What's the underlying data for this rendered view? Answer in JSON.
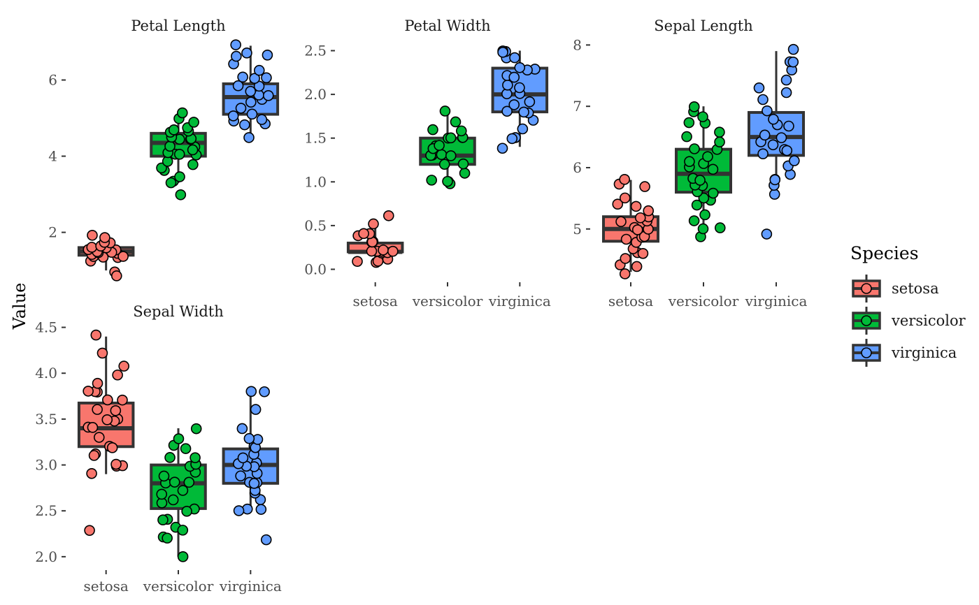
{
  "chart_data": {
    "type": "box",
    "ylabel": "Value",
    "legend": {
      "title": "Species",
      "placement": "right"
    },
    "species": [
      {
        "name": "setosa",
        "color": "#F8766D"
      },
      {
        "name": "versicolor",
        "color": "#00BA38"
      },
      {
        "name": "virginica",
        "color": "#619CFF"
      }
    ],
    "panels": [
      {
        "title": "Petal Length",
        "ylim": [
          0.8,
          7.0
        ],
        "yticks": [
          {
            "value": 2,
            "label": "2"
          },
          {
            "value": 4,
            "label": "4"
          },
          {
            "value": 6,
            "label": "6"
          }
        ],
        "show_x_labels": false,
        "boxes": [
          {
            "species": "setosa",
            "q1": 1.4,
            "median": 1.5,
            "q3": 1.6,
            "whisker_low": 1.0,
            "whisker_high": 1.9
          },
          {
            "species": "versicolor",
            "q1": 4.0,
            "median": 4.35,
            "q3": 4.6,
            "whisker_low": 3.3,
            "whisker_high": 5.1
          },
          {
            "species": "virginica",
            "q1": 5.1,
            "median": 5.55,
            "q3": 5.9,
            "whisker_low": 4.5,
            "whisker_high": 6.9
          }
        ],
        "points": [
          [
            1.0,
            1.2,
            1.3,
            1.3,
            1.4,
            1.4,
            1.4,
            1.4,
            1.5,
            1.5,
            1.5,
            1.5,
            1.5,
            1.6,
            1.6,
            1.6,
            1.7,
            1.7,
            1.9,
            1.9,
            0.9
          ],
          [
            3.0,
            3.3,
            3.3,
            3.5,
            3.6,
            3.7,
            3.8,
            3.9,
            4.0,
            4.0,
            4.1,
            4.1,
            4.2,
            4.2,
            4.3,
            4.4,
            4.4,
            4.5,
            4.5,
            4.6,
            4.7,
            4.7,
            4.8,
            4.9,
            5.0,
            5.1
          ],
          [
            4.5,
            4.8,
            4.8,
            4.9,
            5.0,
            5.1,
            5.1,
            5.3,
            5.4,
            5.5,
            5.6,
            5.6,
            5.7,
            5.8,
            5.9,
            6.0,
            6.1,
            6.1,
            6.3,
            6.4,
            6.6,
            6.7,
            6.7,
            6.9
          ]
        ]
      },
      {
        "title": "Petal Width",
        "ylim": [
          -0.1,
          2.6
        ],
        "yticks": [
          {
            "value": 0.0,
            "label": "0.0"
          },
          {
            "value": 0.5,
            "label": "0.5"
          },
          {
            "value": 1.0,
            "label": "1.0"
          },
          {
            "value": 1.5,
            "label": "1.5"
          },
          {
            "value": 2.0,
            "label": "2.0"
          },
          {
            "value": 2.5,
            "label": "2.5"
          }
        ],
        "show_x_labels": true,
        "boxes": [
          {
            "species": "setosa",
            "q1": 0.2,
            "median": 0.2,
            "q3": 0.3,
            "whisker_low": 0.1,
            "whisker_high": 0.5
          },
          {
            "species": "versicolor",
            "q1": 1.2,
            "median": 1.3,
            "q3": 1.5,
            "whisker_low": 1.0,
            "whisker_high": 1.8
          },
          {
            "species": "virginica",
            "q1": 1.8,
            "median": 2.0,
            "q3": 2.3,
            "whisker_low": 1.4,
            "whisker_high": 2.5
          }
        ],
        "points": [
          [
            0.1,
            0.1,
            0.1,
            0.1,
            0.2,
            0.2,
            0.2,
            0.2,
            0.2,
            0.2,
            0.2,
            0.3,
            0.3,
            0.3,
            0.4,
            0.4,
            0.4,
            0.5,
            0.6
          ],
          [
            1.0,
            1.0,
            1.0,
            1.0,
            1.1,
            1.2,
            1.2,
            1.3,
            1.3,
            1.3,
            1.3,
            1.4,
            1.4,
            1.4,
            1.5,
            1.5,
            1.5,
            1.5,
            1.6,
            1.6,
            1.7,
            1.8
          ],
          [
            1.4,
            1.5,
            1.5,
            1.6,
            1.7,
            1.8,
            1.8,
            1.8,
            1.9,
            1.9,
            2.0,
            2.0,
            2.1,
            2.1,
            2.2,
            2.2,
            2.3,
            2.3,
            2.3,
            2.4,
            2.4,
            2.5,
            2.5,
            2.5
          ]
        ]
      },
      {
        "title": "Sepal Length",
        "ylim": [
          4.2,
          8.05
        ],
        "yticks": [
          {
            "value": 5,
            "label": "5"
          },
          {
            "value": 6,
            "label": "6"
          },
          {
            "value": 7,
            "label": "7"
          },
          {
            "value": 8,
            "label": "8"
          }
        ],
        "show_x_labels": true,
        "boxes": [
          {
            "species": "setosa",
            "q1": 4.8,
            "median": 5.0,
            "q3": 5.2,
            "whisker_low": 4.3,
            "whisker_high": 5.8
          },
          {
            "species": "versicolor",
            "q1": 5.6,
            "median": 5.9,
            "q3": 6.3,
            "whisker_low": 4.9,
            "whisker_high": 7.0
          },
          {
            "species": "virginica",
            "q1": 6.2,
            "median": 6.5,
            "q3": 6.9,
            "whisker_low": 5.6,
            "whisker_high": 7.9
          }
        ],
        "points": [
          [
            4.3,
            4.4,
            4.4,
            4.5,
            4.6,
            4.6,
            4.7,
            4.8,
            4.8,
            4.9,
            4.9,
            5.0,
            5.0,
            5.0,
            5.1,
            5.1,
            5.2,
            5.2,
            5.3,
            5.4,
            5.4,
            5.5,
            5.7,
            5.7,
            5.8
          ],
          [
            4.9,
            5.0,
            5.0,
            5.1,
            5.2,
            5.4,
            5.5,
            5.5,
            5.6,
            5.6,
            5.7,
            5.7,
            5.8,
            5.8,
            6.0,
            6.0,
            6.1,
            6.1,
            6.2,
            6.3,
            6.3,
            6.4,
            6.5,
            6.6,
            6.7,
            6.7,
            6.8,
            6.9,
            7.0
          ],
          [
            4.9,
            5.6,
            5.7,
            5.8,
            5.8,
            5.9,
            6.0,
            6.1,
            6.2,
            6.3,
            6.3,
            6.4,
            6.4,
            6.5,
            6.5,
            6.7,
            6.7,
            6.8,
            6.9,
            7.1,
            7.2,
            7.3,
            7.4,
            7.6,
            7.7,
            7.7,
            7.9
          ]
        ]
      },
      {
        "title": "Sepal Width",
        "ylim": [
          1.9,
          4.55
        ],
        "yticks": [
          {
            "value": 2.0,
            "label": "2.0"
          },
          {
            "value": 2.5,
            "label": "2.5"
          },
          {
            "value": 3.0,
            "label": "3.0"
          },
          {
            "value": 3.5,
            "label": "3.5"
          },
          {
            "value": 4.0,
            "label": "4.0"
          },
          {
            "value": 4.5,
            "label": "4.5"
          }
        ],
        "show_x_labels": true,
        "boxes": [
          {
            "species": "setosa",
            "q1": 3.2,
            "median": 3.4,
            "q3": 3.675,
            "whisker_low": 2.9,
            "whisker_high": 4.4
          },
          {
            "species": "versicolor",
            "q1": 2.525,
            "median": 2.8,
            "q3": 3.0,
            "whisker_low": 2.0,
            "whisker_high": 3.4
          },
          {
            "species": "virginica",
            "q1": 2.8,
            "median": 3.0,
            "q3": 3.175,
            "whisker_low": 2.5,
            "whisker_high": 3.8
          }
        ],
        "points": [
          [
            2.3,
            2.9,
            3.0,
            3.0,
            3.0,
            3.1,
            3.1,
            3.2,
            3.2,
            3.3,
            3.4,
            3.4,
            3.5,
            3.5,
            3.5,
            3.6,
            3.6,
            3.7,
            3.7,
            3.8,
            3.8,
            3.8,
            3.9,
            4.0,
            4.1,
            4.2,
            4.4
          ],
          [
            2.0,
            2.2,
            2.2,
            2.3,
            2.3,
            2.4,
            2.4,
            2.5,
            2.5,
            2.6,
            2.6,
            2.7,
            2.7,
            2.8,
            2.8,
            2.8,
            2.9,
            2.9,
            3.0,
            3.0,
            3.1,
            3.1,
            3.2,
            3.2,
            3.3,
            3.4
          ],
          [
            2.2,
            2.5,
            2.5,
            2.5,
            2.6,
            2.7,
            2.7,
            2.8,
            2.8,
            2.8,
            2.9,
            2.9,
            3.0,
            3.0,
            3.0,
            3.0,
            3.1,
            3.1,
            3.2,
            3.2,
            3.3,
            3.3,
            3.4,
            3.6,
            3.8,
            3.8
          ]
        ]
      }
    ]
  }
}
